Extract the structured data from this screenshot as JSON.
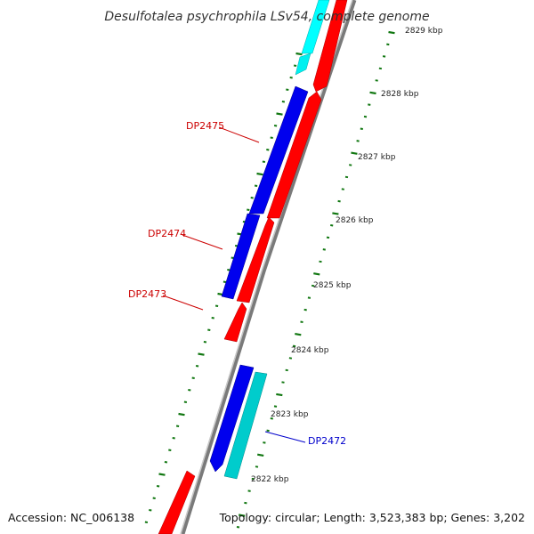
{
  "title": "Desulfotalea psychrophila LSv54, complete genome",
  "accession": "Accession: NC_006138",
  "topology": "Topology: circular; Length: 3,523,383 bp; Genes: 3,202",
  "colors": {
    "forward_gene": "#ff0000",
    "reverse_gene": "#0000ee",
    "rna_gene": "#00c8c8",
    "backbone": "#888888",
    "tick": "#117711",
    "label_forward": "#cc0000",
    "label_reverse": "#0000cc"
  },
  "scale_labels": [
    "2829 kbp",
    "2828 kbp",
    "2827 kbp",
    "2826 kbp",
    "2825 kbp",
    "2824 kbp",
    "2823 kbp",
    "2822 kbp"
  ],
  "gene_labels": [
    {
      "id": "DP2475",
      "text": "DP2475",
      "strand": "reverse"
    },
    {
      "id": "DP2474",
      "text": "DP2474",
      "strand": "reverse"
    },
    {
      "id": "DP2473",
      "text": "DP2473",
      "strand": "forward"
    },
    {
      "id": "DP2472",
      "text": "DP2472",
      "strand": "reverse"
    }
  ]
}
